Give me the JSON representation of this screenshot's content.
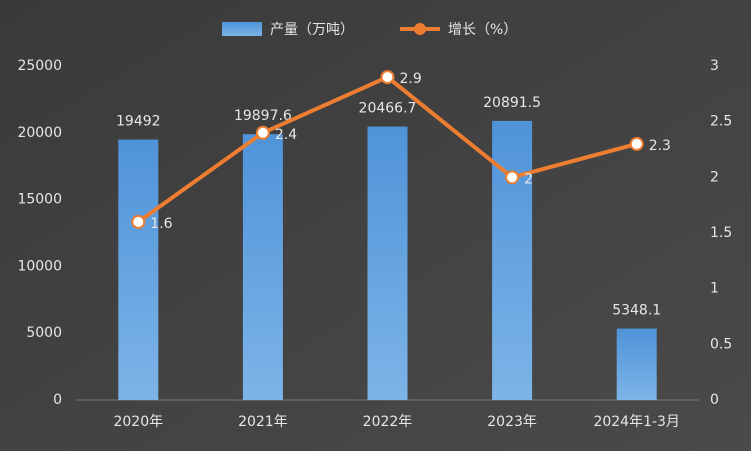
{
  "chart_data": {
    "type": "bar",
    "categories": [
      "2020年",
      "2021年",
      "2022年",
      "2023年",
      "2024年1-3月"
    ],
    "series": [
      {
        "name": "产量（万吨）",
        "type": "bar",
        "color": "#5b9bd5",
        "values": [
          19492,
          19897.6,
          20466.7,
          20891.5,
          5348.1
        ]
      },
      {
        "name": "增长（%）",
        "type": "line",
        "axis": "y2",
        "color": "#ed7d31",
        "values": [
          1.6,
          2.4,
          2.9,
          2,
          2.3
        ]
      }
    ],
    "ylim": [
      0,
      25000
    ],
    "yticks": [
      0,
      5000,
      10000,
      15000,
      20000,
      25000
    ],
    "y2lim": [
      0,
      3
    ],
    "y2ticks": [
      0,
      0.5,
      1,
      1.5,
      2,
      2.5,
      3
    ]
  }
}
